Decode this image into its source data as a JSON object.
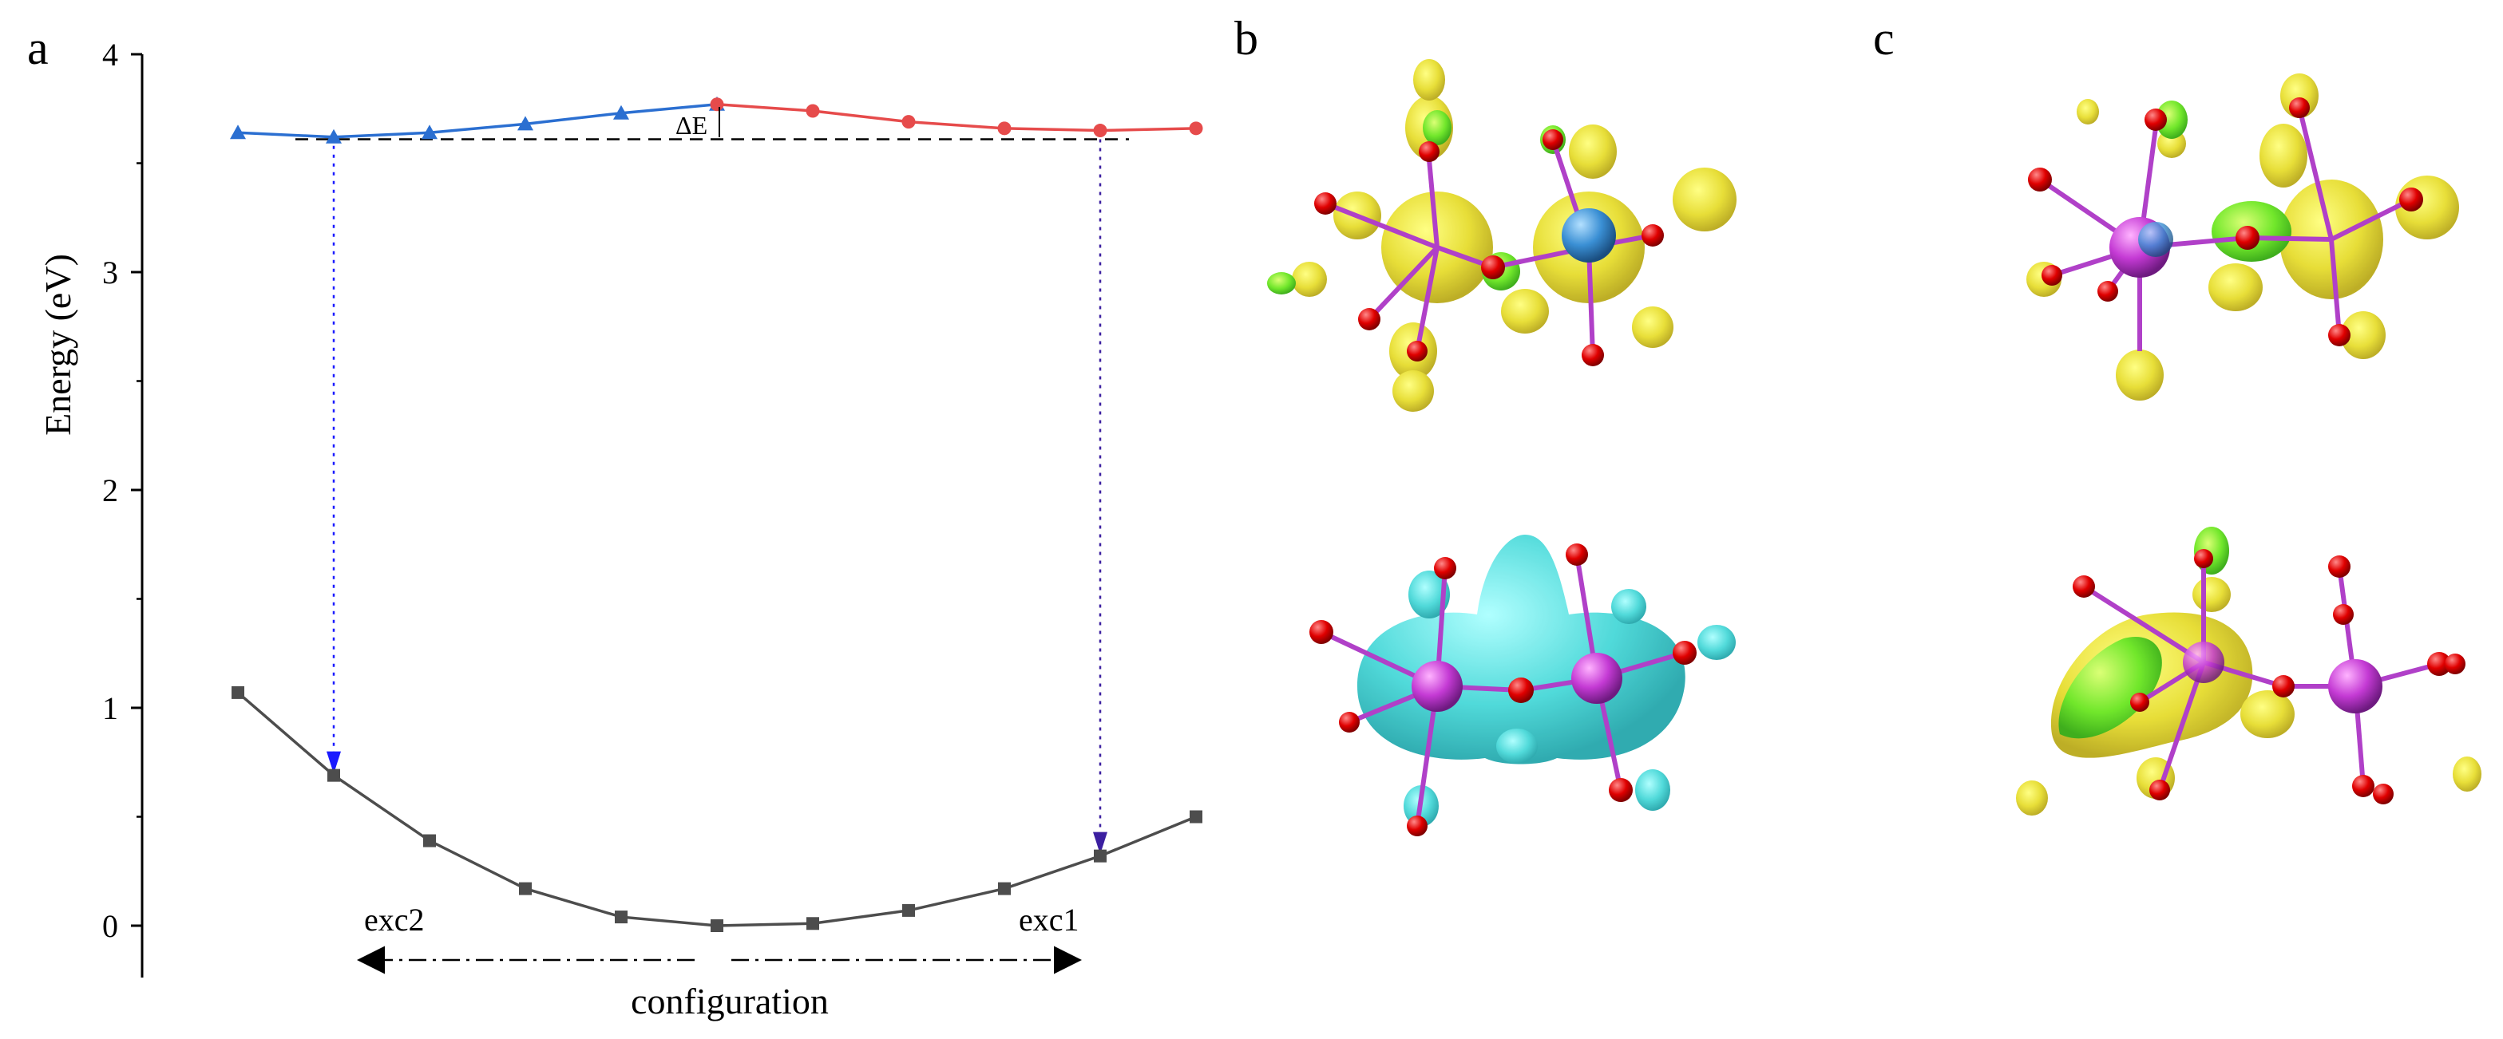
{
  "panels": {
    "a": "a",
    "b": "b",
    "c": "c"
  },
  "chart_data": {
    "type": "line",
    "title": "",
    "xlabel": "configuration",
    "ylabel": "Energy (eV)",
    "ylim": [
      0,
      4
    ],
    "yticks": [
      0,
      1,
      2,
      3,
      4
    ],
    "grid": false,
    "x": [
      1,
      2,
      3,
      4,
      5,
      6,
      7,
      8,
      9,
      10,
      11
    ],
    "series": [
      {
        "key": "ground",
        "color": "#4d4d4d",
        "marker": "square",
        "values": [
          1.07,
          0.69,
          0.39,
          0.17,
          0.04,
          0.0,
          0.01,
          0.07,
          0.17,
          0.32,
          0.5
        ]
      },
      {
        "key": "excited_left",
        "color": "#2b6fd1",
        "marker": "triangle",
        "x": [
          1,
          2,
          3,
          4,
          5,
          6
        ],
        "values": [
          3.64,
          3.62,
          3.64,
          3.68,
          3.73,
          3.77
        ]
      },
      {
        "key": "excited_right",
        "color": "#e64b4b",
        "marker": "circle",
        "x": [
          6,
          7,
          8,
          9,
          10,
          11
        ],
        "values": [
          3.77,
          3.74,
          3.69,
          3.66,
          3.65,
          3.66
        ]
      }
    ],
    "reference_line": {
      "y": 3.61,
      "x_from": 1.6,
      "x_to": 10.3,
      "color": "#000000"
    },
    "delta_label": "ΔE",
    "transitions": [
      {
        "x": 2,
        "y_from": 3.62,
        "y_to": 0.69,
        "color": "#1a1aff"
      },
      {
        "x": 10,
        "y_from": 3.65,
        "y_to": 0.32,
        "color": "#3b1fa0"
      }
    ],
    "arrows": [
      {
        "label": "exc2",
        "direction": "left"
      },
      {
        "label": "exc1",
        "direction": "right"
      }
    ]
  },
  "images": {
    "b_top": "charge-density-isosurface-yellow",
    "b_bottom": "charge-density-isosurface-cyan",
    "c_top": "charge-density-isosurface-yellow",
    "c_bottom": "charge-density-isosurface-yellow-green"
  }
}
